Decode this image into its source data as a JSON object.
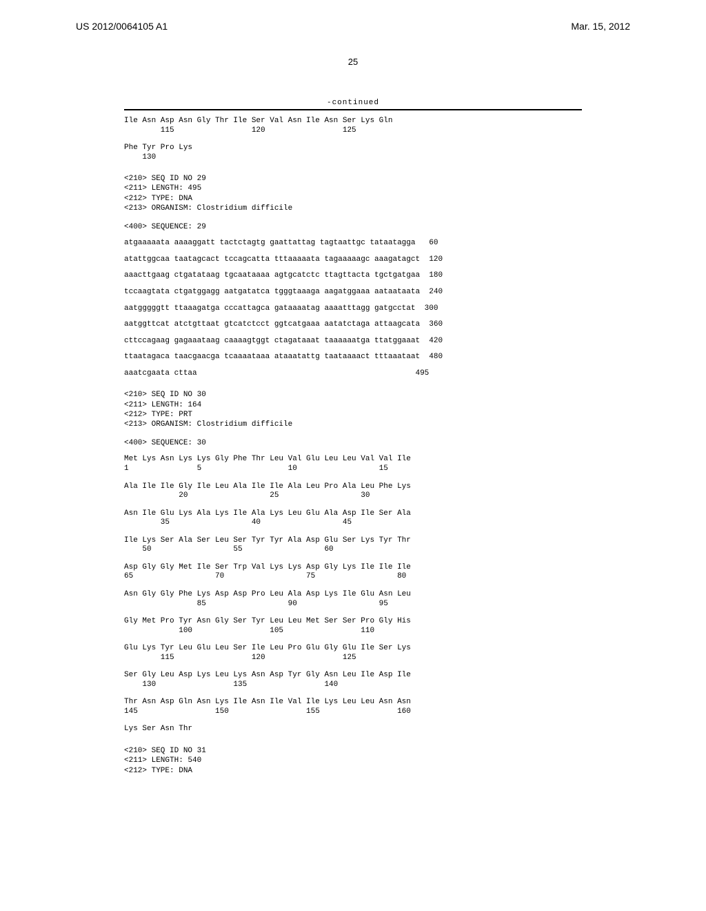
{
  "header": {
    "pub_number": "US 2012/0064105 A1",
    "pub_date": "Mar. 15, 2012"
  },
  "page_number": "25",
  "continued_label": "-continued",
  "seq28_tail": {
    "row1": {
      "aa": "Ile Asn Asp Asn Gly Thr Ile Ser Val Asn Ile Asn Ser Lys Gln",
      "nums": "        115                 120                 125"
    },
    "row2": {
      "aa": "Phe Tyr Pro Lys",
      "nums": "    130"
    }
  },
  "seq29_meta": {
    "l1": "<210> SEQ ID NO 29",
    "l2": "<211> LENGTH: 495",
    "l3": "<212> TYPE: DNA",
    "l4": "<213> ORGANISM: Clostridium difficile"
  },
  "seq29_label": "<400> SEQUENCE: 29",
  "seq29_dna": {
    "l1": {
      "seq": "atgaaaaata aaaaggatt tactctagtg gaattattag tagtaattgc tataatagga",
      "n": "   60"
    },
    "l2": {
      "seq": "atattggcaa taatagcact tccagcatta tttaaaaata tagaaaaagc aaagatagct",
      "n": "  120"
    },
    "l3": {
      "seq": "aaacttgaag ctgatataag tgcaataaaa agtgcatctc ttagttacta tgctgatgaa",
      "n": "  180"
    },
    "l4": {
      "seq": "tccaagtata ctgatggagg aatgatatca tgggtaaaga aagatggaaa aataataata",
      "n": "  240"
    },
    "l5": {
      "seq": "aatgggggtt ttaaagatga cccattagca gataaaatag aaaatttagg gatgcctat",
      "n": "  300"
    },
    "l6": {
      "seq": "aatggttcat atctgttaat gtcatctcct ggtcatgaaa aatatctaga attaagcata",
      "n": "  360"
    },
    "l7": {
      "seq": "cttccagaag gagaaataag caaaagtggt ctagataaat taaaaaatga ttatggaaat",
      "n": "  420"
    },
    "l8": {
      "seq": "ttaatagaca taacgaacga tcaaaataaa ataaatattg taataaaact tttaaataat",
      "n": "  480"
    },
    "l9": {
      "seq": "aaatcgaata cttaa",
      "n": "  495"
    }
  },
  "seq30_meta": {
    "l1": "<210> SEQ ID NO 30",
    "l2": "<211> LENGTH: 164",
    "l3": "<212> TYPE: PRT",
    "l4": "<213> ORGANISM: Clostridium difficile"
  },
  "seq30_label": "<400> SEQUENCE: 30",
  "seq30_prot": {
    "r1": {
      "aa": "Met Lys Asn Lys Lys Gly Phe Thr Leu Val Glu Leu Leu Val Val Ile",
      "n": "1               5                   10                  15"
    },
    "r2": {
      "aa": "Ala Ile Ile Gly Ile Leu Ala Ile Ile Ala Leu Pro Ala Leu Phe Lys",
      "n": "            20                  25                  30"
    },
    "r3": {
      "aa": "Asn Ile Glu Lys Ala Lys Ile Ala Lys Leu Glu Ala Asp Ile Ser Ala",
      "n": "        35                  40                  45"
    },
    "r4": {
      "aa": "Ile Lys Ser Ala Ser Leu Ser Tyr Tyr Ala Asp Glu Ser Lys Tyr Thr",
      "n": "    50                  55                  60"
    },
    "r5": {
      "aa": "Asp Gly Gly Met Ile Ser Trp Val Lys Lys Asp Gly Lys Ile Ile Ile",
      "n": "65                  70                  75                  80"
    },
    "r6": {
      "aa": "Asn Gly Gly Phe Lys Asp Asp Pro Leu Ala Asp Lys Ile Glu Asn Leu",
      "n": "                85                  90                  95"
    },
    "r7": {
      "aa": "Gly Met Pro Tyr Asn Gly Ser Tyr Leu Leu Met Ser Ser Pro Gly His",
      "n": "            100                 105                 110"
    },
    "r8": {
      "aa": "Glu Lys Tyr Leu Glu Leu Ser Ile Leu Pro Glu Gly Glu Ile Ser Lys",
      "n": "        115                 120                 125"
    },
    "r9": {
      "aa": "Ser Gly Leu Asp Lys Leu Lys Asn Asp Tyr Gly Asn Leu Ile Asp Ile",
      "n": "    130                 135                 140"
    },
    "r10": {
      "aa": "Thr Asn Asp Gln Asn Lys Ile Asn Ile Val Ile Lys Leu Leu Asn Asn",
      "n": "145                 150                 155                 160"
    },
    "r11": {
      "aa": "Lys Ser Asn Thr",
      "n": ""
    }
  },
  "seq31_meta": {
    "l1": "<210> SEQ ID NO 31",
    "l2": "<211> LENGTH: 540",
    "l3": "<212> TYPE: DNA"
  }
}
